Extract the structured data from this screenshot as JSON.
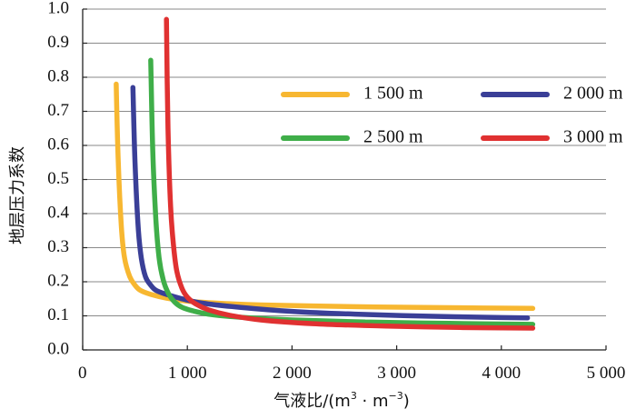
{
  "chart_data": {
    "type": "line",
    "xlabel": "气液比/(m³・m⁻³)",
    "xlabel_parts": {
      "main": "气液比/(m",
      "sup1": "3",
      "mid": " · m",
      "sup2": "−3",
      "end": ")"
    },
    "ylabel": "地层压力系数",
    "xlim": [
      0,
      5000
    ],
    "ylim": [
      0,
      1.0
    ],
    "x_ticks": [
      0,
      1000,
      2000,
      3000,
      4000,
      5000
    ],
    "x_tick_labels": [
      "0",
      "1 000",
      "2 000",
      "3 000",
      "4 000",
      "5 000"
    ],
    "y_ticks": [
      0.0,
      0.1,
      0.2,
      0.3,
      0.4,
      0.5,
      0.6,
      0.7,
      0.8,
      0.9,
      1.0
    ],
    "y_tick_labels": [
      "0.0",
      "0.1",
      "0.2",
      "0.3",
      "0.4",
      "0.5",
      "0.6",
      "0.7",
      "0.8",
      "0.9",
      "1.0"
    ],
    "grid": "horizontal",
    "legend_position": "top-right",
    "series": [
      {
        "name": "1 500 m",
        "color": "#f7b731",
        "x": [
          320,
          340,
          370,
          400,
          450,
          500,
          550,
          650,
          800,
          1000,
          1300,
          1700,
          2200,
          2800,
          3500,
          4300
        ],
        "y": [
          0.78,
          0.55,
          0.36,
          0.27,
          0.215,
          0.19,
          0.175,
          0.163,
          0.152,
          0.143,
          0.137,
          0.132,
          0.129,
          0.126,
          0.124,
          0.122
        ]
      },
      {
        "name": "2 000 m",
        "color": "#3a3f97",
        "x": [
          480,
          500,
          530,
          560,
          600,
          650,
          700,
          800,
          950,
          1150,
          1500,
          2000,
          2600,
          3300,
          4000,
          4250
        ],
        "y": [
          0.77,
          0.55,
          0.36,
          0.27,
          0.215,
          0.19,
          0.175,
          0.163,
          0.15,
          0.137,
          0.125,
          0.113,
          0.105,
          0.099,
          0.095,
          0.094
        ]
      },
      {
        "name": "2 500 m",
        "color": "#3fae49",
        "x": [
          650,
          670,
          700,
          730,
          770,
          820,
          880,
          950,
          1050,
          1200,
          1500,
          2000,
          2700,
          3500,
          4300
        ],
        "y": [
          0.85,
          0.58,
          0.38,
          0.27,
          0.205,
          0.165,
          0.14,
          0.125,
          0.115,
          0.105,
          0.096,
          0.088,
          0.082,
          0.078,
          0.075
        ]
      },
      {
        "name": "3 000 m",
        "color": "#e03131",
        "x": [
          800,
          815,
          840,
          870,
          900,
          950,
          1000,
          1080,
          1200,
          1400,
          1700,
          2200,
          2900,
          3600,
          4300
        ],
        "y": [
          0.97,
          0.65,
          0.42,
          0.3,
          0.23,
          0.18,
          0.155,
          0.135,
          0.118,
          0.102,
          0.088,
          0.077,
          0.07,
          0.066,
          0.064
        ]
      }
    ]
  }
}
